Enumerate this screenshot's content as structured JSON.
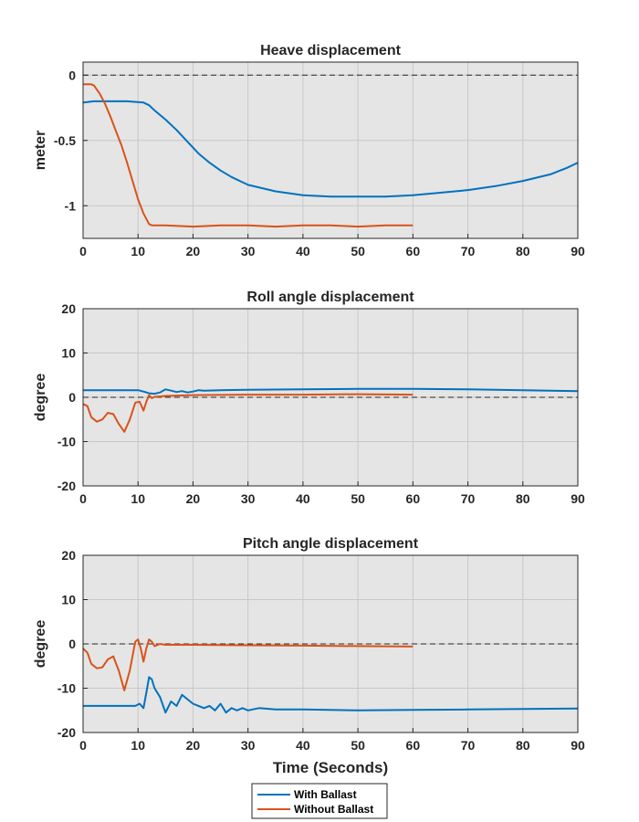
{
  "chart_data": [
    {
      "type": "line",
      "title": "Heave displacement",
      "ylabel": "meter",
      "xlabel": "",
      "xlim": [
        0,
        90
      ],
      "ylim": [
        -1.25,
        0.1
      ],
      "xticks": [
        "0",
        "10",
        "20",
        "30",
        "40",
        "50",
        "60",
        "70",
        "80",
        "90"
      ],
      "xtick_values": [
        0,
        10,
        20,
        30,
        40,
        50,
        60,
        70,
        80,
        90
      ],
      "yticks": [
        "0",
        "-0.5",
        "-1"
      ],
      "ytick_values": [
        0,
        -0.5,
        -1
      ],
      "grid": true,
      "zero_line": true,
      "series": [
        {
          "name": "With Ballast",
          "color": "#0072BD",
          "x": [
            0,
            2,
            5,
            8,
            11,
            12,
            13,
            15,
            17,
            19,
            21,
            23,
            25,
            27,
            30,
            35,
            40,
            45,
            50,
            55,
            60,
            65,
            70,
            75,
            80,
            85,
            88,
            90
          ],
          "y": [
            -0.21,
            -0.2,
            -0.2,
            -0.2,
            -0.21,
            -0.23,
            -0.27,
            -0.34,
            -0.42,
            -0.51,
            -0.6,
            -0.67,
            -0.73,
            -0.78,
            -0.84,
            -0.89,
            -0.92,
            -0.93,
            -0.93,
            -0.93,
            -0.92,
            -0.9,
            -0.88,
            -0.85,
            -0.81,
            -0.76,
            -0.71,
            -0.67
          ]
        },
        {
          "name": "Without Ballast",
          "color": "#D95319",
          "x": [
            0,
            1,
            1.5,
            2,
            3,
            4,
            5,
            6,
            7,
            8,
            9,
            10,
            11,
            12,
            12.5,
            13,
            15,
            20,
            25,
            30,
            35,
            40,
            45,
            50,
            55,
            60
          ],
          "y": [
            -0.07,
            -0.07,
            -0.07,
            -0.08,
            -0.14,
            -0.22,
            -0.32,
            -0.43,
            -0.54,
            -0.67,
            -0.81,
            -0.95,
            -1.06,
            -1.14,
            -1.15,
            -1.15,
            -1.15,
            -1.16,
            -1.15,
            -1.15,
            -1.16,
            -1.15,
            -1.15,
            -1.16,
            -1.15,
            -1.15
          ]
        }
      ]
    },
    {
      "type": "line",
      "title": "Roll angle displacement",
      "ylabel": "degree",
      "xlabel": "",
      "xlim": [
        0,
        90
      ],
      "ylim": [
        -20,
        20
      ],
      "xticks": [
        "0",
        "10",
        "20",
        "30",
        "40",
        "50",
        "60",
        "70",
        "80",
        "90"
      ],
      "xtick_values": [
        0,
        10,
        20,
        30,
        40,
        50,
        60,
        70,
        80,
        90
      ],
      "yticks": [
        "20",
        "10",
        "0",
        "-10",
        "-20"
      ],
      "ytick_values": [
        20,
        10,
        0,
        -10,
        -20
      ],
      "grid": true,
      "zero_line": true,
      "series": [
        {
          "name": "With Ballast",
          "color": "#0072BD",
          "x": [
            0,
            5,
            10,
            11,
            12,
            13,
            14,
            15,
            16,
            17,
            18,
            19,
            20,
            21,
            22,
            25,
            30,
            40,
            50,
            60,
            70,
            80,
            90
          ],
          "y": [
            1.6,
            1.6,
            1.6,
            1.3,
            0.9,
            0.8,
            1.1,
            1.8,
            1.5,
            1.2,
            1.4,
            1.1,
            1.3,
            1.6,
            1.5,
            1.6,
            1.7,
            1.8,
            1.9,
            1.9,
            1.8,
            1.6,
            1.4
          ]
        },
        {
          "name": "Without Ballast",
          "color": "#D95319",
          "x": [
            0,
            0.8,
            1.5,
            2.5,
            3.5,
            4.5,
            5.5,
            6.5,
            7.5,
            8.5,
            9.5,
            10.3,
            11,
            11.5,
            12,
            12.5,
            13,
            15,
            20,
            30,
            40,
            50,
            60
          ],
          "y": [
            -1.5,
            -2,
            -4.5,
            -5.5,
            -5,
            -3.5,
            -3.8,
            -6,
            -7.8,
            -5,
            -1.2,
            -1,
            -3,
            -1,
            0.5,
            -0.2,
            0.1,
            0.3,
            0.5,
            0.6,
            0.6,
            0.7,
            0.6
          ]
        }
      ]
    },
    {
      "type": "line",
      "title": "Pitch angle displacement",
      "ylabel": "degree",
      "xlabel": "Time (Seconds)",
      "xlim": [
        0,
        90
      ],
      "ylim": [
        -20,
        20
      ],
      "xticks": [
        "0",
        "10",
        "20",
        "30",
        "40",
        "50",
        "60",
        "70",
        "80",
        "90"
      ],
      "xtick_values": [
        0,
        10,
        20,
        30,
        40,
        50,
        60,
        70,
        80,
        90
      ],
      "yticks": [
        "20",
        "10",
        "0",
        "-10",
        "-20"
      ],
      "ytick_values": [
        20,
        10,
        0,
        -10,
        -20
      ],
      "grid": true,
      "zero_line": true,
      "series": [
        {
          "name": "With Ballast",
          "color": "#0072BD",
          "x": [
            0,
            5,
            9.5,
            10.3,
            11,
            11.5,
            12,
            12.5,
            13,
            14,
            15,
            16,
            17,
            18,
            19,
            20,
            21,
            22,
            23,
            24,
            25,
            26,
            27,
            28,
            29,
            30,
            32,
            35,
            40,
            50,
            60,
            70,
            80,
            90
          ],
          "y": [
            -14,
            -14,
            -14,
            -13.5,
            -14.5,
            -11,
            -7.5,
            -8,
            -10,
            -12,
            -15.5,
            -13,
            -14,
            -11.5,
            -12.5,
            -13.5,
            -14,
            -14.5,
            -14,
            -15,
            -13.5,
            -15.5,
            -14.5,
            -15,
            -14.5,
            -15,
            -14.5,
            -14.8,
            -14.8,
            -15,
            -14.9,
            -14.8,
            -14.7,
            -14.6
          ]
        },
        {
          "name": "Without Ballast",
          "color": "#D95319",
          "x": [
            0,
            0.8,
            1.5,
            2.5,
            3.5,
            4.5,
            5.5,
            6.5,
            7.5,
            8.5,
            9.5,
            10,
            10.5,
            11,
            11.5,
            12,
            12.5,
            13,
            14,
            15,
            20,
            30,
            40,
            50,
            60
          ],
          "y": [
            -1,
            -2,
            -4.5,
            -5.5,
            -5.3,
            -3.5,
            -2.8,
            -6,
            -10.5,
            -6,
            0.5,
            1,
            -1,
            -4,
            -1,
            1,
            0.5,
            -0.5,
            0,
            -0.2,
            -0.2,
            -0.3,
            -0.4,
            -0.5,
            -0.6
          ]
        }
      ]
    }
  ],
  "legend": {
    "placement": "bottom",
    "entries": [
      {
        "label": "With Ballast",
        "color": "#0072BD"
      },
      {
        "label": "Without Ballast",
        "color": "#D95319"
      }
    ]
  }
}
